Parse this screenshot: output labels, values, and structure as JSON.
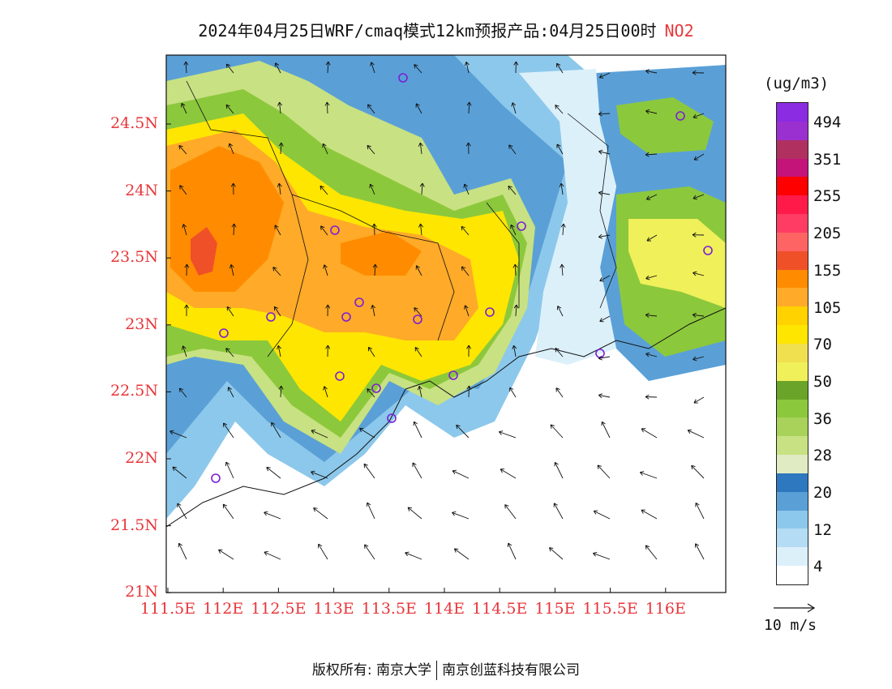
{
  "header": {
    "title": "2024年04月25日WRF/cmaq模式12km预报产品:04月25日00时",
    "species": "NO2"
  },
  "map": {
    "lat_labels": [
      "24.5N",
      "24N",
      "23.5N",
      "23N",
      "22.5N",
      "22N",
      "21.5N",
      "21N"
    ],
    "lon_labels": [
      "111.5E",
      "112E",
      "112.5E",
      "113E",
      "113.5E",
      "114E",
      "114.5E",
      "115E",
      "115.5E",
      "116E"
    ]
  },
  "legend": {
    "unit": "(ug/m3)",
    "colors": [
      "#8b2be2",
      "#9b30d0",
      "#b03060",
      "#c4147a",
      "#ff0000",
      "#ff1a4a",
      "#ff3c64",
      "#ff6464",
      "#f05028",
      "#ff8c00",
      "#ffaa28",
      "#ffd200",
      "#ffe600",
      "#f0e050",
      "#f0f05a",
      "#6aa428",
      "#8cc83c",
      "#a8d25a",
      "#c8e182",
      "#e1ebc3",
      "#2d78be",
      "#5aa0d7",
      "#8cc8eb",
      "#b4dcf5",
      "#dcf0fa",
      "#ffffff"
    ],
    "labels": [
      "494",
      "351",
      "255",
      "205",
      "155",
      "105",
      "70",
      "50",
      "36",
      "28",
      "20",
      "12",
      "4"
    ]
  },
  "wind": {
    "label": "10 m/s"
  },
  "footer": {
    "left": "版权所有: 南京大学",
    "right": "南京创蓝科技有限公司"
  }
}
